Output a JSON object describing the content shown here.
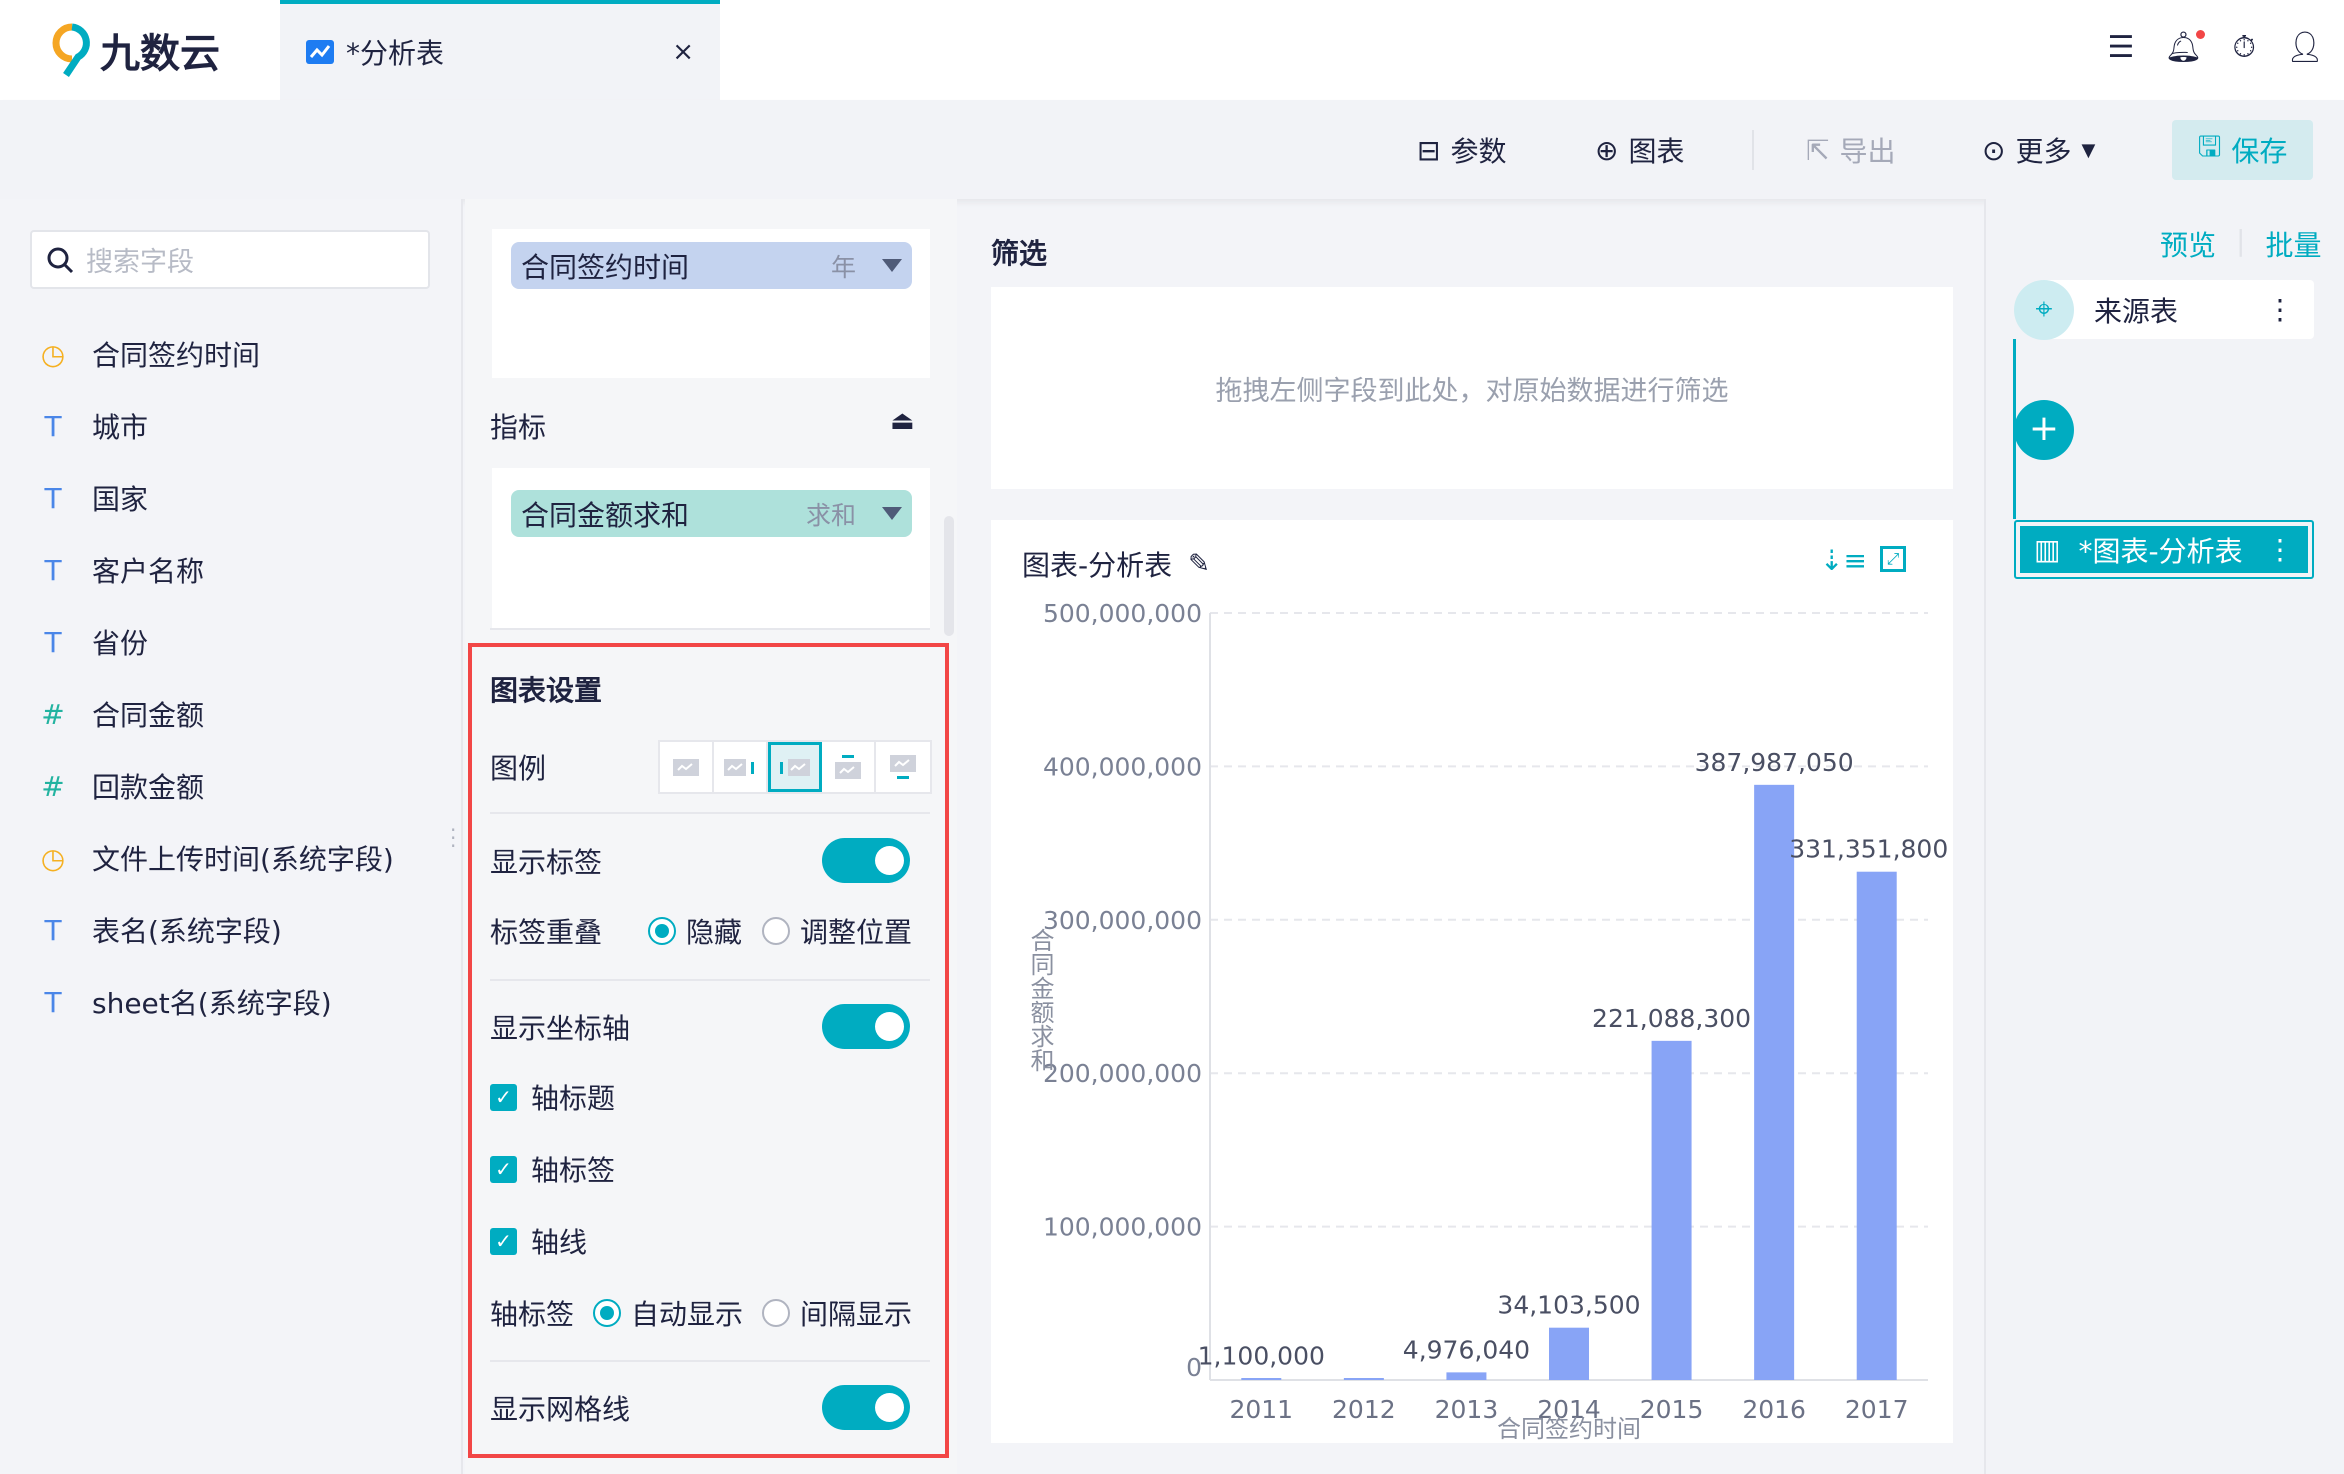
{
  "app": {
    "logo": "九数云",
    "tab_title": "*分析表",
    "tab_close": "×"
  },
  "topbar_icons": [
    "list-icon",
    "bell-icon",
    "timer-icon",
    "user-icon"
  ],
  "toolbar": {
    "params": "参数",
    "chart": "图表",
    "export": "导出",
    "more": "更多",
    "save": "保存"
  },
  "sidebar": {
    "search_placeholder": "搜索字段",
    "fields": [
      {
        "type": "date",
        "label": "合同签约时间"
      },
      {
        "type": "text",
        "label": "城市"
      },
      {
        "type": "text",
        "label": "国家"
      },
      {
        "type": "text",
        "label": "客户名称"
      },
      {
        "type": "text",
        "label": "省份"
      },
      {
        "type": "number",
        "label": "合同金额"
      },
      {
        "type": "number",
        "label": "回款金额"
      },
      {
        "type": "date",
        "label": "文件上传时间(系统字段)"
      },
      {
        "type": "text",
        "label": "表名(系统字段)"
      },
      {
        "type": "text",
        "label": "sheet名(系统字段)"
      }
    ]
  },
  "config": {
    "dimension": {
      "label": "合同签约时间",
      "agg": "年"
    },
    "metrics_title": "指标",
    "metric": {
      "label": "合同金额求和",
      "agg": "求和"
    },
    "settings": {
      "title": "图表设置",
      "legend": "图例",
      "legend_selected": 3,
      "show_labels": "显示标签",
      "show_labels_on": true,
      "label_overlap": "标签重叠",
      "overlap_hide": "隐藏",
      "overlap_adjust": "调整位置",
      "overlap_selected": "隐藏",
      "show_axis": "显示坐标轴",
      "show_axis_on": true,
      "axis_title": "轴标题",
      "axis_label": "轴标签",
      "axis_line": "轴线",
      "axis_label_mode": "轴标签",
      "auto_show": "自动显示",
      "interval_show": "间隔显示",
      "axis_label_selected": "自动显示",
      "show_grid": "显示网格线",
      "show_grid_on": true
    }
  },
  "filter": {
    "title": "筛选",
    "placeholder": "拖拽左侧字段到此处，对原始数据进行筛选"
  },
  "chart_card": {
    "title": "图表-分析表"
  },
  "chart_data": {
    "type": "bar",
    "categories": [
      "2011",
      "2012",
      "2013",
      "2014",
      "2015",
      "2016",
      "2017"
    ],
    "values": [
      1100000,
      1000000,
      4976040,
      34103500,
      221088300,
      387987050,
      331351800
    ],
    "data_labels": [
      "1,100,000",
      "",
      "4,976,040",
      "34,103,500",
      "221,088,300",
      "387,987,050",
      "331,351,800"
    ],
    "xlabel": "合同签约时间",
    "ylabel": "合同金额求和",
    "ylim": [
      0,
      500000000
    ],
    "yticks": [
      "0",
      "100,000,000",
      "200,000,000",
      "300,000,000",
      "400,000,000",
      "500,000,000"
    ],
    "grid": true,
    "bar_color": "#88a4f6"
  },
  "flow": {
    "preview": "预览",
    "batch": "批量",
    "source": "来源表",
    "node": "*图表-分析表"
  },
  "colors": {
    "accent": "#00acc1",
    "alert": "#f24646"
  }
}
